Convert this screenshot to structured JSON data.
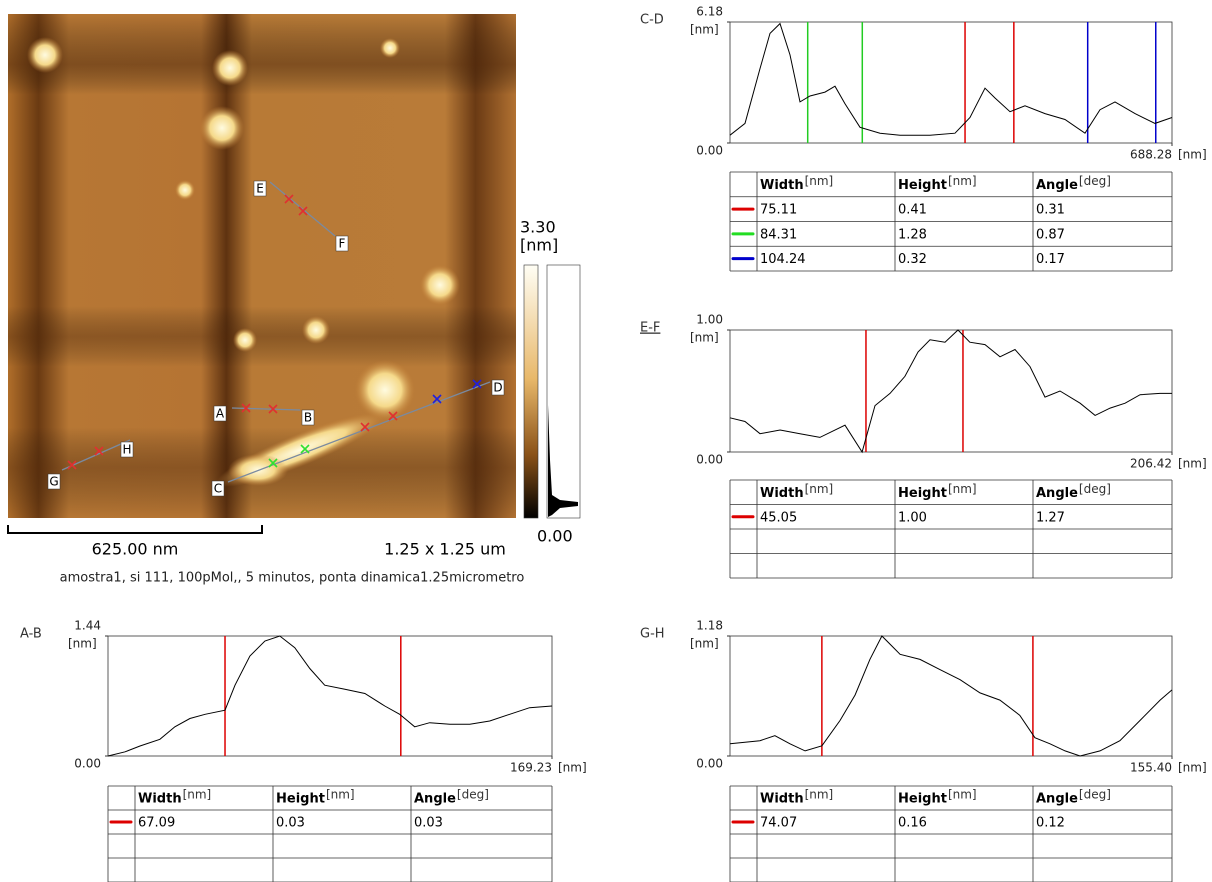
{
  "image": {
    "markers": [
      "A",
      "B",
      "C",
      "D",
      "E",
      "F",
      "G",
      "H"
    ],
    "scale_max": "3.30",
    "scale_unit": "[nm]",
    "scale_min": "0.00",
    "scale_bar": "625.00 nm",
    "size": "1.25 x 1.25 um",
    "caption": "amostra1, si 111, 100pMol,, 5 minutos, ponta dinamica1.25micrometro"
  },
  "profiles": [
    {
      "title": "C-D",
      "y_unit": "[nm]",
      "x_unit": "[nm]",
      "xlim": [
        0,
        688.28
      ],
      "ylim": [
        0,
        6.18
      ],
      "yticks": [
        {
          "value": 0,
          "label": "0.00"
        },
        6.18
      ],
      "xticks": [
        688.28
      ],
      "x": [
        0,
        23.4,
        46.7,
        62.3,
        77.9,
        93.4,
        109,
        124.6,
        147.9,
        163.5,
        179.1,
        202.4,
        233.6,
        264.7,
        311.4,
        350.4,
        373.7,
        397.1,
        412.6,
        436,
        459.4,
        490.5,
        521.7,
        552.8,
        576.2,
        599.5,
        630.7,
        661.8,
        688.28
      ],
      "values": [
        0.4,
        1.0,
        3.8,
        5.6,
        6.1,
        4.5,
        2.1,
        2.4,
        2.6,
        2.9,
        2.0,
        0.8,
        0.5,
        0.4,
        0.4,
        0.5,
        1.3,
        2.8,
        2.3,
        1.6,
        1.9,
        1.5,
        1.2,
        0.5,
        1.7,
        2.1,
        1.5,
        1.0,
        1.3
      ],
      "cursors": [
        {
          "color": "#22cc22",
          "x": [
            121,
            206
          ]
        },
        {
          "color": "#dd0000",
          "x": [
            366,
            442
          ]
        },
        {
          "color": "#0000cc",
          "x": [
            557,
            663
          ]
        }
      ],
      "table": {
        "columns": [
          {
            "name": "Width",
            "unit": "[nm]"
          },
          {
            "name": "Height",
            "unit": "[nm]"
          },
          {
            "name": "Angle",
            "unit": "[deg]"
          }
        ],
        "rows": [
          {
            "color": "#dd0000",
            "cells": [
              "75.11",
              "0.41",
              "0.31"
            ]
          },
          {
            "color": "#22dd22",
            "cells": [
              "84.31",
              "1.28",
              "0.87"
            ]
          },
          {
            "color": "#0000cc",
            "cells": [
              "104.24",
              "0.32",
              "0.17"
            ]
          }
        ]
      }
    },
    {
      "title": "E-F",
      "y_unit": "[nm]",
      "x_unit": "[nm]",
      "xlim": [
        0,
        206.42
      ],
      "ylim": [
        0,
        1.0
      ],
      "yticks": [
        {
          "value": 0,
          "label": "0.00"
        },
        {
          "value": 1,
          "label": "1.00"
        }
      ],
      "xticks": [
        206.42
      ],
      "x": [
        0,
        7,
        14,
        23.4,
        32.7,
        42,
        53.7,
        61.7,
        67.7,
        74.7,
        81.7,
        87.8,
        93.4,
        100.4,
        106.5,
        112,
        119.1,
        126.1,
        133.1,
        140.1,
        147.1,
        154.1,
        163.5,
        170.5,
        177.5,
        184.5,
        191.5,
        200.8,
        206.42
      ],
      "values": [
        0.28,
        0.25,
        0.15,
        0.18,
        0.15,
        0.12,
        0.22,
        0.0,
        0.38,
        0.48,
        0.62,
        0.82,
        0.92,
        0.9,
        1.0,
        0.9,
        0.88,
        0.78,
        0.84,
        0.7,
        0.45,
        0.5,
        0.4,
        0.3,
        0.36,
        0.4,
        0.47,
        0.48,
        0.48
      ],
      "cursors": [
        {
          "color": "#dd0000",
          "x": [
            63.5,
            108.8
          ]
        }
      ],
      "table": {
        "columns": [
          {
            "name": "Width",
            "unit": "[nm]"
          },
          {
            "name": "Height",
            "unit": "[nm]"
          },
          {
            "name": "Angle",
            "unit": "[deg]"
          }
        ],
        "rows": [
          {
            "color": "#dd0000",
            "cells": [
              "45.05",
              "1.00",
              "1.27"
            ]
          }
        ]
      }
    },
    {
      "title": "A-B",
      "y_unit": "[nm]",
      "x_unit": "[nm]",
      "xlim": [
        0,
        169.23
      ],
      "ylim": [
        0,
        1.44
      ],
      "yticks": [
        {
          "value": 0,
          "label": "0.00"
        },
        1.44
      ],
      "xticks": [
        169.23
      ],
      "x": [
        0,
        6.5,
        12.2,
        19.8,
        25.5,
        31.2,
        37,
        44.6,
        48.4,
        54.1,
        59.8,
        65.5,
        71.2,
        76.9,
        82.6,
        90.3,
        97.9,
        105.5,
        111.2,
        116.9,
        122.6,
        130.3,
        137.9,
        145.5,
        153.1,
        160.7,
        169.23
      ],
      "values": [
        0.0,
        0.05,
        0.12,
        0.2,
        0.35,
        0.45,
        0.5,
        0.55,
        0.85,
        1.2,
        1.38,
        1.44,
        1.3,
        1.05,
        0.85,
        0.8,
        0.75,
        0.6,
        0.5,
        0.35,
        0.4,
        0.38,
        0.38,
        0.42,
        0.5,
        0.58,
        0.6
      ],
      "cursors": [
        {
          "color": "#dd0000",
          "x": [
            44.6,
            111.6
          ]
        }
      ],
      "table": {
        "columns": [
          {
            "name": "Width",
            "unit": "[nm]"
          },
          {
            "name": "Height",
            "unit": "[nm]"
          },
          {
            "name": "Angle",
            "unit": "[deg]"
          }
        ],
        "rows": [
          {
            "color": "#dd0000",
            "cells": [
              "67.09",
              "0.03",
              "0.03"
            ]
          }
        ]
      }
    },
    {
      "title": "G-H",
      "y_unit": "[nm]",
      "x_unit": "[nm]",
      "xlim": [
        0,
        155.4
      ],
      "ylim": [
        0,
        1.18
      ],
      "yticks": [
        {
          "value": 0,
          "label": "0.00"
        },
        1.18
      ],
      "xticks": [
        {
          "value": 155.4,
          "label": "155.40"
        }
      ],
      "x": [
        0,
        10.5,
        15.8,
        21.1,
        26.4,
        32.3,
        38.7,
        44,
        49.2,
        53.4,
        59.8,
        66.8,
        73.8,
        80.9,
        87.9,
        94.9,
        101.9,
        107.2,
        112.5,
        117.8,
        123.1,
        130.1,
        137.1,
        144.2,
        151.2,
        155.4
      ],
      "values": [
        0.12,
        0.15,
        0.2,
        0.12,
        0.05,
        0.1,
        0.35,
        0.6,
        0.95,
        1.18,
        1.0,
        0.95,
        0.85,
        0.75,
        0.62,
        0.55,
        0.4,
        0.18,
        0.12,
        0.05,
        0.0,
        0.05,
        0.15,
        0.35,
        0.55,
        0.65
      ],
      "cursors": [
        {
          "color": "#dd0000",
          "x": [
            32.3,
            106.5
          ]
        }
      ],
      "table": {
        "columns": [
          {
            "name": "Width",
            "unit": "[nm]"
          },
          {
            "name": "Height",
            "unit": "[nm]"
          },
          {
            "name": "Angle",
            "unit": "[deg]"
          }
        ],
        "rows": [
          {
            "color": "#dd0000",
            "cells": [
              "74.07",
              "0.16",
              "0.12"
            ]
          }
        ]
      }
    }
  ]
}
